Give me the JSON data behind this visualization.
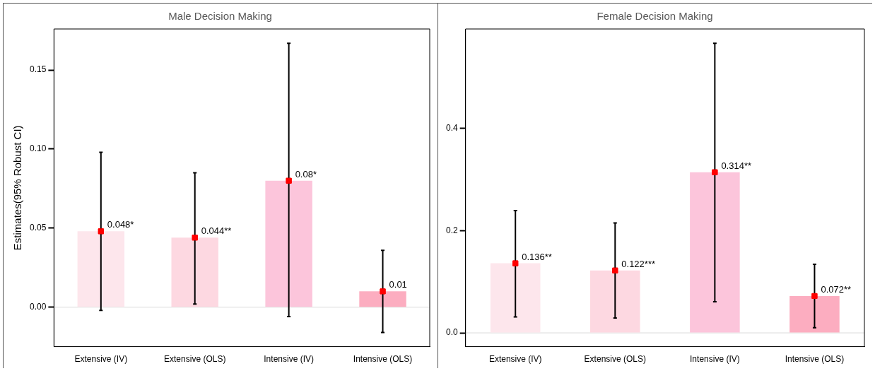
{
  "chart_data": [
    {
      "type": "bar",
      "title": "Male Decision Making",
      "ylabel": "Estimates(95% Robust CI)",
      "categories": [
        "Extensive (IV)",
        "Extensive (OLS)",
        "Intensive (IV)",
        "Intensive (OLS)"
      ],
      "series": [
        {
          "type": "bar",
          "colors": [
            "#fde6ec",
            "#fdd8e1",
            "#fcc5db",
            "#fcadc0"
          ],
          "values": [
            0.048,
            0.044,
            0.08,
            0.01
          ],
          "value_labels": [
            "0.048*",
            "0.044**",
            "0.08*",
            "0.01"
          ]
        },
        {
          "type": "scatter",
          "x": [
            "Extensive (IV)",
            "Extensive (OLS)",
            "Intensive (IV)",
            "Intensive (OLS)"
          ],
          "color": "#ff0000",
          "values": [
            0.048,
            0.044,
            0.08,
            0.01
          ],
          "errors": [
            [
              -0.002,
              0.098
            ],
            [
              0.002,
              0.085
            ],
            [
              -0.006,
              0.167
            ],
            [
              -0.016,
              0.036
            ]
          ]
        }
      ],
      "marker": "square",
      "ylim": [
        -0.025,
        0.176
      ],
      "yticks": [
        {
          "value": 0,
          "label": "0.00"
        },
        {
          "value": 0.05,
          "label": "0.05"
        },
        {
          "value": 0.1,
          "label": "0.10"
        },
        {
          "value": 0.15,
          "label": "0.15"
        }
      ],
      "ref_lines": [
        {
          "axis": "y",
          "value": 0,
          "color": "#d9d9d9"
        }
      ],
      "grid": false,
      "legend": false
    },
    {
      "type": "bar",
      "title": "Female Decision Making",
      "categories": [
        "Extensive (IV)",
        "Extensive (OLS)",
        "Intensive (IV)",
        "Intensive (OLS)"
      ],
      "series": [
        {
          "type": "bar",
          "colors": [
            "#fde6ec",
            "#fdd8e1",
            "#fcc5db",
            "#fcadc0"
          ],
          "values": [
            0.136,
            0.122,
            0.314,
            0.072
          ],
          "value_labels": [
            "0.136**",
            "0.122***",
            "0.314**",
            "0.072**"
          ]
        },
        {
          "type": "scatter",
          "x": [
            "Extensive (IV)",
            "Extensive (OLS)",
            "Intensive (IV)",
            "Intensive (OLS)"
          ],
          "color": "#ff0000",
          "values": [
            0.136,
            0.122,
            0.314,
            0.072
          ],
          "errors": [
            [
              0.031,
              0.239
            ],
            [
              0.029,
              0.215
            ],
            [
              0.061,
              0.566
            ],
            [
              0.01,
              0.134
            ]
          ]
        }
      ],
      "marker": "square",
      "ylim": [
        -0.027,
        0.594
      ],
      "yticks": [
        {
          "value": 0,
          "label": "0.0"
        },
        {
          "value": 0.2,
          "label": "0.2"
        },
        {
          "value": 0.4,
          "label": "0.4"
        }
      ],
      "ref_lines": [
        {
          "axis": "y",
          "value": 0,
          "color": "#d9d9d9"
        }
      ],
      "grid": false,
      "legend": false
    }
  ]
}
